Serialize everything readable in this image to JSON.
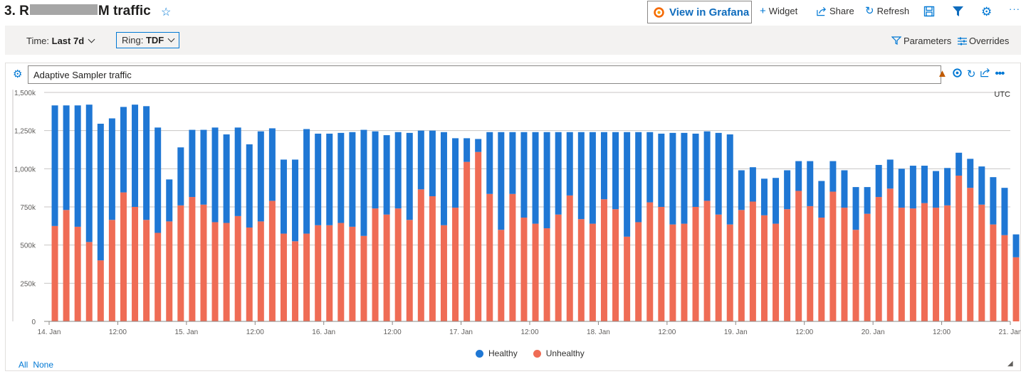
{
  "header": {
    "title_prefix": "3. R",
    "title_suffix": "M traffic",
    "grafana_label": "View in Grafana",
    "widget_label": "Widget",
    "share_label": "Share",
    "refresh_label": "Refresh",
    "more_label": "···"
  },
  "filters": {
    "time_label": "Time: ",
    "time_value": "Last 7d",
    "ring_label": "Ring: ",
    "ring_value": "TDF",
    "parameters_label": "Parameters",
    "overrides_label": "Overrides"
  },
  "panel": {
    "title": "Adaptive Sampler traffic",
    "timezone": "UTC",
    "legend_all": "All",
    "legend_none": "None"
  },
  "colors": {
    "healthy": "#1f77d4",
    "unhealthy": "#ef6c55",
    "accent": "#0078d4"
  },
  "chart_data": {
    "type": "bar",
    "stacked": true,
    "title": "Adaptive Sampler traffic",
    "ylim": [
      0,
      1500000
    ],
    "y_ticks": [
      0,
      250000,
      500000,
      750000,
      1000000,
      1250000,
      1500000
    ],
    "y_tick_labels": [
      "0",
      "250k",
      "500k",
      "750k",
      "1,000k",
      "1,250k",
      "1,500k"
    ],
    "x_tick_labels": [
      "14. Jan",
      "12:00",
      "15. Jan",
      "12:00",
      "16. Jan",
      "12:00",
      "17. Jan",
      "12:00",
      "18. Jan",
      "12:00",
      "19. Jan",
      "12:00",
      "20. Jan",
      "12:00",
      "21. Jan"
    ],
    "x_tick_hours": [
      0,
      12,
      24,
      36,
      48,
      60,
      72,
      84,
      96,
      108,
      120,
      132,
      144,
      156,
      168
    ],
    "interval_hours": 2,
    "legend_position": "bottom",
    "grid": true,
    "series": [
      {
        "name": "Unhealthy",
        "color": "#ef6c55",
        "values": [
          625000,
          730000,
          620000,
          520000,
          400000,
          665000,
          845000,
          750000,
          665000,
          580000,
          655000,
          760000,
          815000,
          765000,
          650000,
          645000,
          690000,
          615000,
          655000,
          790000,
          575000,
          525000,
          575000,
          630000,
          630000,
          645000,
          620000,
          560000,
          740000,
          700000,
          740000,
          665000,
          865000,
          820000,
          630000,
          745000,
          1045000,
          1110000,
          835000,
          600000,
          835000,
          680000,
          640000,
          610000,
          700000,
          825000,
          670000,
          640000,
          800000,
          735000,
          555000,
          650000,
          780000,
          750000,
          635000,
          640000,
          750000,
          790000,
          700000,
          635000,
          730000,
          785000,
          695000,
          640000,
          735000,
          855000,
          755000,
          680000,
          850000,
          745000,
          600000,
          705000,
          815000,
          870000,
          745000,
          740000,
          775000,
          745000,
          760000,
          955000,
          875000,
          765000,
          635000,
          565000,
          420000
        ]
      },
      {
        "name": "Healthy",
        "color": "#1f77d4",
        "values": [
          790000,
          685000,
          795000,
          900000,
          895000,
          665000,
          560000,
          670000,
          745000,
          690000,
          275000,
          380000,
          440000,
          490000,
          620000,
          580000,
          580000,
          545000,
          590000,
          475000,
          485000,
          535000,
          685000,
          600000,
          600000,
          590000,
          620000,
          695000,
          505000,
          520000,
          500000,
          570000,
          385000,
          430000,
          610000,
          455000,
          155000,
          85000,
          405000,
          640000,
          405000,
          560000,
          600000,
          630000,
          540000,
          415000,
          570000,
          600000,
          440000,
          505000,
          685000,
          590000,
          460000,
          480000,
          600000,
          595000,
          480000,
          455000,
          535000,
          590000,
          260000,
          225000,
          240000,
          300000,
          255000,
          195000,
          295000,
          240000,
          200000,
          245000,
          280000,
          175000,
          210000,
          190000,
          255000,
          280000,
          245000,
          240000,
          245000,
          150000,
          190000,
          250000,
          310000,
          310000,
          150000
        ]
      }
    ]
  }
}
